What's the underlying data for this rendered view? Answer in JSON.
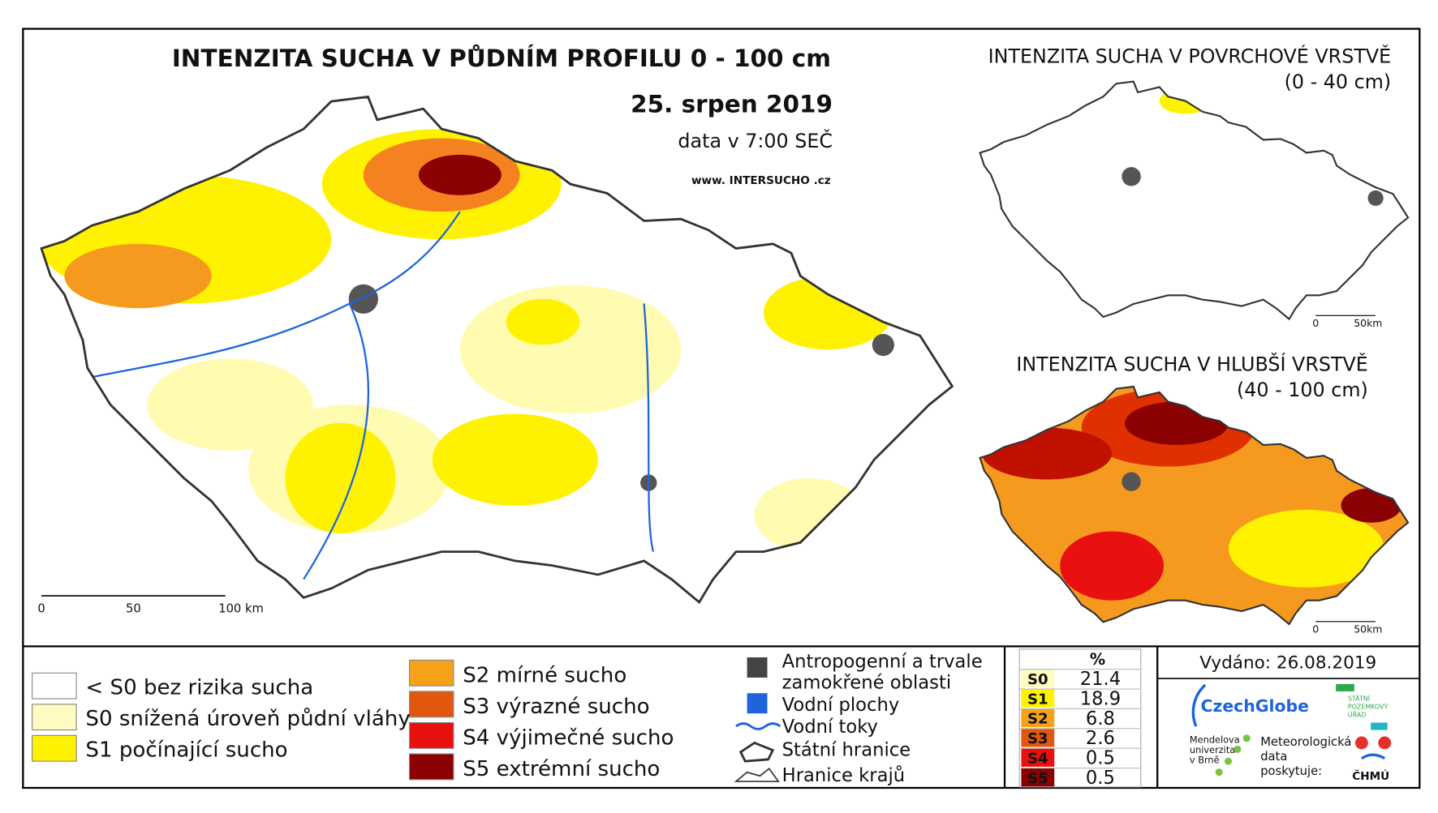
{
  "main_map": {
    "title": "INTENZITA SUCHA V PŮDNÍM PROFILU 0 - 100 cm",
    "date": "25. srpen 2019",
    "data_time": "data v 7:00 SEČ",
    "website": "www. INTERSUCHO .cz",
    "scale": [
      "0",
      "50",
      "100 km"
    ]
  },
  "surface_map": {
    "title": "INTENZITA SUCHA V POVRCHOVÉ VRSTVĚ",
    "depth": "(0 - 40 cm)",
    "scale": [
      "0",
      "50km"
    ]
  },
  "deep_map": {
    "title": "INTENZITA SUCHA V HLUBŠÍ VRSTVĚ",
    "depth": "(40 - 100 cm)",
    "scale": [
      "0",
      "50km"
    ]
  },
  "legend": {
    "categories": [
      "< S0 bez rizika sucha",
      "S0 snížená úroveň půdní vláhy",
      "S1 počínající sucho",
      "S2 mírné sucho",
      "S3 výrazné sucho",
      "S4 výjimečné sucho",
      "S5 extrémní sucho"
    ],
    "features": [
      "Antropogenní a trvale",
      "zamokřené oblasti",
      "Vodní plochy",
      "Vodní toky",
      "Státní hranice",
      "Hranice krajů"
    ]
  },
  "statistics": {
    "header": "%",
    "rows": [
      {
        "class": "S0",
        "percent": 21.4
      },
      {
        "class": "S1",
        "percent": 18.9
      },
      {
        "class": "S2",
        "percent": 6.8
      },
      {
        "class": "S3",
        "percent": 2.6
      },
      {
        "class": "S4",
        "percent": 0.5
      },
      {
        "class": "S5",
        "percent": 0.5
      }
    ]
  },
  "issued": "Vydáno: 26.08.2019",
  "logos": {
    "czechglobe": "CzechGlobe",
    "spu": [
      "STÁTNÍ",
      "POZEMKOVÝ",
      "ÚŘAD"
    ],
    "mendelu": [
      "Mendelova",
      "univerzita",
      "v Brně"
    ],
    "chmu_note": [
      "Meteorologická",
      "data",
      "poskytuje:"
    ],
    "chmu": "ČHMÚ"
  }
}
